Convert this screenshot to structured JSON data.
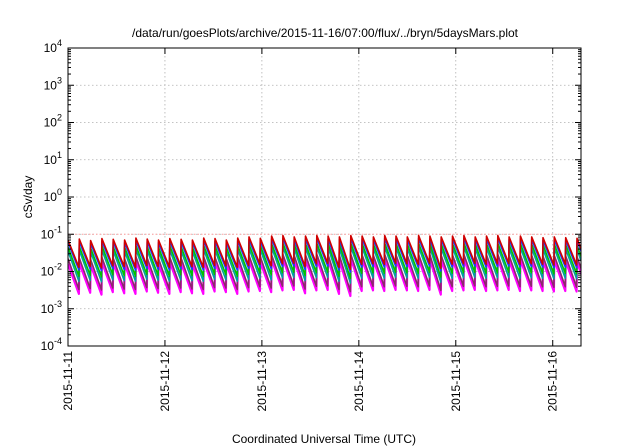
{
  "chart_data": {
    "type": "line",
    "title": "/data/run/goesPlots/archive/2015-11-16/07:00/flux/../bryn/5daysMars.plot",
    "xlabel": "Coordinated Universal Time (UTC)",
    "ylabel": "cSv/day",
    "yscale": "log",
    "ylim": [
      0.0001,
      10000
    ],
    "xlim": [
      "2015-11-11T00:00",
      "2015-11-16T07:00"
    ],
    "grid": true,
    "x_ticks": [
      "2015-11-11",
      "2015-11-12",
      "2015-11-13",
      "2015-11-14",
      "2015-11-15",
      "2015-11-16"
    ],
    "y_ticks": [
      {
        "value": 0.0001,
        "base": "10",
        "exp": "-4"
      },
      {
        "value": 0.001,
        "base": "10",
        "exp": "-3"
      },
      {
        "value": 0.01,
        "base": "10",
        "exp": "-2"
      },
      {
        "value": 0.1,
        "base": "10",
        "exp": "-1"
      },
      {
        "value": 1,
        "base": "10",
        "exp": "0"
      },
      {
        "value": 10,
        "base": "10",
        "exp": "1"
      },
      {
        "value": 100,
        "base": "10",
        "exp": "2"
      },
      {
        "value": 1000,
        "base": "10",
        "exp": "3"
      },
      {
        "value": 10000,
        "base": "10",
        "exp": "4"
      }
    ],
    "reference_line": {
      "value": 0.1,
      "color": "#ffa0a0"
    },
    "sawtooth": {
      "period_hours": 2.8,
      "periods": 46
    },
    "series": [
      {
        "color": "#ff00ff",
        "peaks": [
          0.016,
          0.017,
          0.015,
          0.018,
          0.017,
          0.016,
          0.019,
          0.017,
          0.016,
          0.018,
          0.017,
          0.016,
          0.019,
          0.018,
          0.016,
          0.019,
          0.02,
          0.018,
          0.021,
          0.022,
          0.02,
          0.021,
          0.022,
          0.021,
          0.02,
          0.022,
          0.021,
          0.02,
          0.022,
          0.021,
          0.02,
          0.022,
          0.021,
          0.02,
          0.021,
          0.022,
          0.02,
          0.021,
          0.022,
          0.02,
          0.021,
          0.02,
          0.019,
          0.02,
          0.019,
          0.018
        ],
        "troughs": [
          0.0025,
          0.0027,
          0.0024,
          0.0028,
          0.0026,
          0.0025,
          0.0029,
          0.0027,
          0.0025,
          0.0028,
          0.0026,
          0.0025,
          0.0029,
          0.0028,
          0.0025,
          0.0029,
          0.003,
          0.0028,
          0.0031,
          0.0032,
          0.0026,
          0.0031,
          0.0032,
          0.0025,
          0.0022,
          0.003,
          0.0031,
          0.003,
          0.0032,
          0.0031,
          0.003,
          0.0032,
          0.0024,
          0.003,
          0.0031,
          0.0032,
          0.003,
          0.0031,
          0.0032,
          0.003,
          0.0031,
          0.003,
          0.0029,
          0.003,
          0.0029,
          0.0028
        ]
      },
      {
        "color": "#8b2a6b",
        "peaks": [
          0.022,
          0.023,
          0.021,
          0.024,
          0.023,
          0.022,
          0.025,
          0.023,
          0.022,
          0.024,
          0.023,
          0.022,
          0.025,
          0.024,
          0.022,
          0.025,
          0.027,
          0.025,
          0.028,
          0.029,
          0.027,
          0.028,
          0.029,
          0.028,
          0.027,
          0.029,
          0.028,
          0.027,
          0.029,
          0.028,
          0.027,
          0.029,
          0.028,
          0.027,
          0.028,
          0.029,
          0.027,
          0.028,
          0.029,
          0.027,
          0.028,
          0.027,
          0.026,
          0.027,
          0.026,
          0.025
        ],
        "troughs": [
          0.0033,
          0.0035,
          0.0032,
          0.0036,
          0.0034,
          0.0033,
          0.0037,
          0.0035,
          0.0033,
          0.0036,
          0.0034,
          0.0033,
          0.0037,
          0.0036,
          0.0033,
          0.0037,
          0.0039,
          0.0036,
          0.004,
          0.0041,
          0.0034,
          0.004,
          0.0041,
          0.0033,
          0.0029,
          0.0039,
          0.004,
          0.0039,
          0.0041,
          0.004,
          0.0039,
          0.0041,
          0.0031,
          0.0039,
          0.004,
          0.0041,
          0.0039,
          0.004,
          0.0041,
          0.0039,
          0.004,
          0.0039,
          0.0038,
          0.0039,
          0.0038,
          0.0036
        ]
      },
      {
        "color": "#00a0a0",
        "peaks": [
          0.035,
          0.037,
          0.034,
          0.038,
          0.036,
          0.035,
          0.039,
          0.037,
          0.035,
          0.038,
          0.036,
          0.035,
          0.039,
          0.038,
          0.035,
          0.039,
          0.042,
          0.039,
          0.044,
          0.046,
          0.042,
          0.044,
          0.046,
          0.044,
          0.042,
          0.046,
          0.044,
          0.042,
          0.046,
          0.044,
          0.042,
          0.046,
          0.044,
          0.042,
          0.044,
          0.046,
          0.042,
          0.044,
          0.046,
          0.042,
          0.044,
          0.042,
          0.04,
          0.042,
          0.04,
          0.039
        ],
        "troughs": [
          0.0055,
          0.0058,
          0.0053,
          0.006,
          0.0057,
          0.0055,
          0.0062,
          0.0058,
          0.0055,
          0.006,
          0.0057,
          0.0055,
          0.0062,
          0.006,
          0.0055,
          0.0062,
          0.0066,
          0.006,
          0.0068,
          0.007,
          0.0057,
          0.0068,
          0.007,
          0.0055,
          0.0049,
          0.0066,
          0.0068,
          0.0066,
          0.007,
          0.0068,
          0.0066,
          0.007,
          0.0052,
          0.0066,
          0.0068,
          0.007,
          0.0066,
          0.0068,
          0.007,
          0.0066,
          0.0068,
          0.0066,
          0.0064,
          0.0066,
          0.0064,
          0.006
        ]
      },
      {
        "color": "#00c000",
        "peaks": [
          0.045,
          0.047,
          0.043,
          0.049,
          0.046,
          0.045,
          0.05,
          0.047,
          0.045,
          0.049,
          0.046,
          0.045,
          0.05,
          0.049,
          0.045,
          0.05,
          0.054,
          0.05,
          0.056,
          0.058,
          0.054,
          0.056,
          0.058,
          0.056,
          0.054,
          0.058,
          0.056,
          0.054,
          0.058,
          0.056,
          0.054,
          0.058,
          0.056,
          0.054,
          0.056,
          0.058,
          0.054,
          0.056,
          0.058,
          0.054,
          0.056,
          0.054,
          0.052,
          0.054,
          0.052,
          0.05
        ],
        "troughs": [
          0.0075,
          0.0079,
          0.0072,
          0.0082,
          0.0078,
          0.0075,
          0.0084,
          0.0079,
          0.0075,
          0.0082,
          0.0078,
          0.0075,
          0.0084,
          0.0082,
          0.0075,
          0.0084,
          0.009,
          0.0082,
          0.0093,
          0.0096,
          0.0078,
          0.0093,
          0.0096,
          0.0075,
          0.0066,
          0.009,
          0.0093,
          0.009,
          0.0096,
          0.0093,
          0.009,
          0.0096,
          0.0071,
          0.009,
          0.0093,
          0.0096,
          0.009,
          0.0093,
          0.0096,
          0.009,
          0.0093,
          0.009,
          0.0087,
          0.009,
          0.0087,
          0.0082
        ]
      },
      {
        "color": "#1a3aff",
        "peaks": [
          0.06,
          0.063,
          0.058,
          0.065,
          0.062,
          0.06,
          0.067,
          0.063,
          0.06,
          0.065,
          0.062,
          0.06,
          0.067,
          0.065,
          0.06,
          0.067,
          0.072,
          0.066,
          0.075,
          0.078,
          0.072,
          0.075,
          0.078,
          0.075,
          0.072,
          0.078,
          0.075,
          0.072,
          0.078,
          0.075,
          0.072,
          0.078,
          0.075,
          0.072,
          0.075,
          0.078,
          0.072,
          0.075,
          0.078,
          0.072,
          0.075,
          0.072,
          0.069,
          0.072,
          0.069,
          0.066
        ],
        "troughs": [
          0.011,
          0.0116,
          0.0106,
          0.012,
          0.0114,
          0.011,
          0.0123,
          0.0116,
          0.011,
          0.012,
          0.0114,
          0.011,
          0.0123,
          0.012,
          0.011,
          0.0123,
          0.0132,
          0.012,
          0.0137,
          0.0141,
          0.0114,
          0.0137,
          0.0141,
          0.011,
          0.0097,
          0.0132,
          0.0137,
          0.0132,
          0.0141,
          0.0137,
          0.0132,
          0.0141,
          0.0104,
          0.0132,
          0.0137,
          0.0141,
          0.0132,
          0.0137,
          0.0141,
          0.0132,
          0.0137,
          0.0132,
          0.0127,
          0.0132,
          0.0127,
          0.012
        ]
      },
      {
        "color": "#d00000",
        "peaks": [
          0.07,
          0.074,
          0.068,
          0.077,
          0.073,
          0.07,
          0.079,
          0.074,
          0.07,
          0.077,
          0.073,
          0.07,
          0.079,
          0.077,
          0.07,
          0.079,
          0.085,
          0.078,
          0.089,
          0.092,
          0.085,
          0.089,
          0.092,
          0.089,
          0.085,
          0.092,
          0.089,
          0.085,
          0.092,
          0.089,
          0.085,
          0.092,
          0.089,
          0.085,
          0.089,
          0.092,
          0.085,
          0.089,
          0.092,
          0.085,
          0.089,
          0.085,
          0.081,
          0.085,
          0.081,
          0.078
        ],
        "troughs": [
          0.013,
          0.0137,
          0.0125,
          0.0142,
          0.0135,
          0.013,
          0.0146,
          0.0137,
          0.013,
          0.0142,
          0.0135,
          0.013,
          0.0146,
          0.0142,
          0.013,
          0.0146,
          0.0157,
          0.0142,
          0.0162,
          0.0167,
          0.0135,
          0.0162,
          0.0167,
          0.013,
          0.0114,
          0.0157,
          0.0162,
          0.0157,
          0.0167,
          0.0162,
          0.0157,
          0.0167,
          0.0123,
          0.0157,
          0.0162,
          0.0167,
          0.0157,
          0.0162,
          0.0167,
          0.0157,
          0.0162,
          0.0157,
          0.015,
          0.0157,
          0.015,
          0.0142
        ]
      }
    ]
  }
}
